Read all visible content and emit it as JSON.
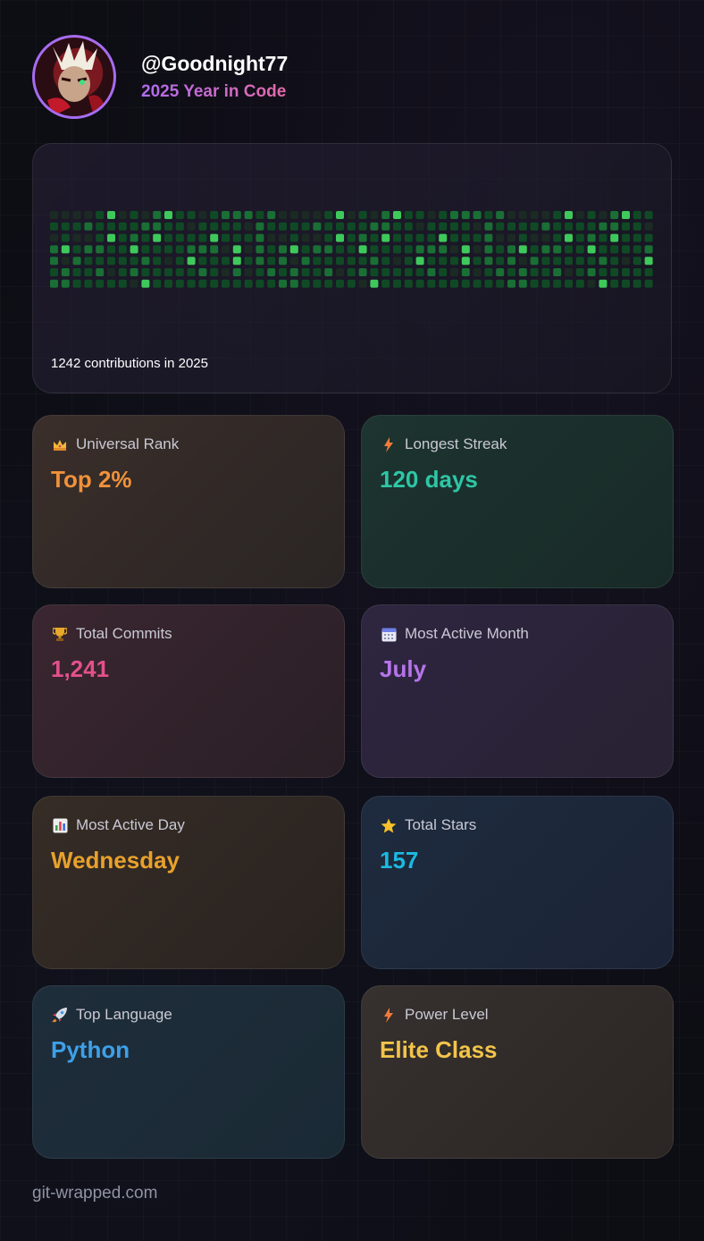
{
  "header": {
    "username": "@Goodnight77",
    "subtitle": "2025 Year in Code"
  },
  "heatmap": {
    "contributions_text": "1242 contributions in 2025",
    "levels": [
      [
        0,
        1,
        1,
        0,
        0,
        2,
        0,
        2,
        2,
        0,
        3,
        2,
        1,
        1,
        1,
        3,
        1,
        2,
        0,
        0
      ],
      [
        1,
        1,
        1,
        1,
        1,
        2,
        1,
        1,
        2,
        1,
        2,
        1,
        0,
        1,
        1,
        2,
        1,
        0,
        1,
        1
      ],
      [
        1,
        1,
        0,
        2,
        3,
        1,
        1,
        1,
        0,
        3,
        1,
        0,
        1,
        1,
        1,
        1,
        2,
        3,
        1,
        0
      ],
      [
        1,
        1,
        2,
        2,
        3,
        2,
        3,
        1,
        0,
        1,
        1,
        3,
        2,
        1,
        0,
        2,
        1,
        2,
        1,
        2
      ],
      [
        3,
        1,
        1,
        1,
        2,
        1,
        1,
        0,
        2,
        1,
        2,
        1,
        3,
        1,
        0,
        1,
        1,
        1,
        2,
        1
      ],
      [
        0,
        1,
        2,
        1,
        2,
        1,
        2,
        1,
        2,
        1,
        0,
        1,
        1,
        2,
        1,
        1,
        0,
        2,
        1,
        1
      ],
      [
        1,
        1,
        1,
        1,
        1,
        1,
        2,
        0,
        1,
        2,
        3,
        1,
        1,
        1,
        1,
        1,
        1,
        1,
        1,
        1
      ]
    ],
    "colors": [
      "#1c2a24",
      "#0f4a25",
      "#196f34",
      "#3ec95b"
    ]
  },
  "cards": {
    "rank": {
      "icon": "crown-icon",
      "label": "Universal Rank",
      "value": "Top 2%",
      "color": "#f0913a"
    },
    "streak": {
      "icon": "lightning-icon",
      "label": "Longest Streak",
      "value": "120 days",
      "color": "#2ec6a6"
    },
    "commit": {
      "icon": "trophy-icon",
      "label": "Total Commits",
      "value": "1,241",
      "color": "#e4508c"
    },
    "month": {
      "icon": "calendar-icon",
      "label": "Most Active Month",
      "value": "July",
      "color": "#b574ea"
    },
    "day": {
      "icon": "bar-chart-icon",
      "label": "Most Active Day",
      "value": "Wednesday",
      "color": "#e8a12c"
    },
    "stars": {
      "icon": "star-icon",
      "label": "Total Stars",
      "value": "157",
      "color": "#1cb9e0"
    },
    "lang": {
      "icon": "rocket-icon",
      "label": "Top Language",
      "value": "Python",
      "color": "#3ea0e8"
    },
    "power": {
      "icon": "lightning-icon",
      "label": "Power Level",
      "value": "Elite Class",
      "color": "#f2c44a"
    }
  },
  "footer": "git-wrapped.com"
}
